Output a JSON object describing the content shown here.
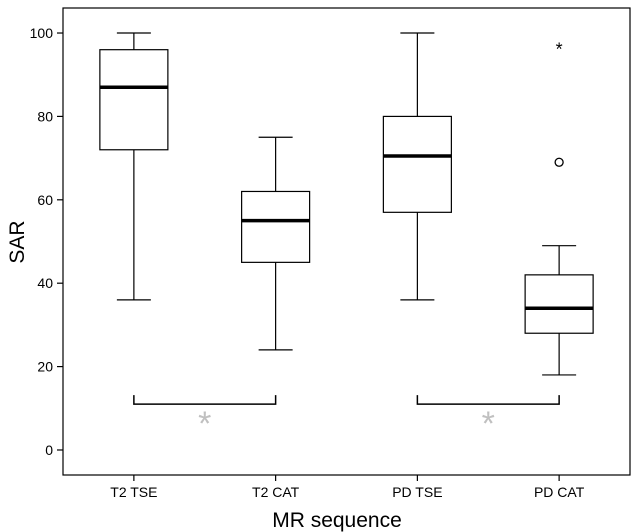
{
  "chart_data": {
    "type": "boxplot",
    "title": "",
    "xlabel": "MR sequence",
    "ylabel": "SAR",
    "ylim": [
      -6,
      106
    ],
    "yticks": [
      0,
      20,
      40,
      60,
      80,
      100
    ],
    "grid": false,
    "categories": [
      "T2 TSE",
      "T2 CAT",
      "PD TSE",
      "PD CAT"
    ],
    "boxes": [
      {
        "category": "T2 TSE",
        "whisker_low": 36,
        "q1": 72,
        "median": 87,
        "q3": 96,
        "whisker_high": 100,
        "outliers": [],
        "extremes": []
      },
      {
        "category": "T2 CAT",
        "whisker_low": 24,
        "q1": 45,
        "median": 55,
        "q3": 62,
        "whisker_high": 75,
        "outliers": [],
        "extremes": []
      },
      {
        "category": "PD TSE",
        "whisker_low": 36,
        "q1": 57,
        "median": 70.5,
        "q3": 80,
        "whisker_high": 100,
        "outliers": [],
        "extremes": []
      },
      {
        "category": "PD CAT",
        "whisker_low": 18,
        "q1": 28,
        "median": 34,
        "q3": 42,
        "whisker_high": 49,
        "outliers": [
          69
        ],
        "extremes": [
          97
        ]
      }
    ],
    "significance": [
      {
        "from": "T2 TSE",
        "to": "T2 CAT",
        "y": 11,
        "marker": "*"
      },
      {
        "from": "PD TSE",
        "to": "PD CAT",
        "y": 11,
        "marker": "*"
      }
    ],
    "colors": {
      "box_fill": "#ffffff",
      "line": "#000000",
      "significance_marker": "#c0c0c0"
    }
  }
}
